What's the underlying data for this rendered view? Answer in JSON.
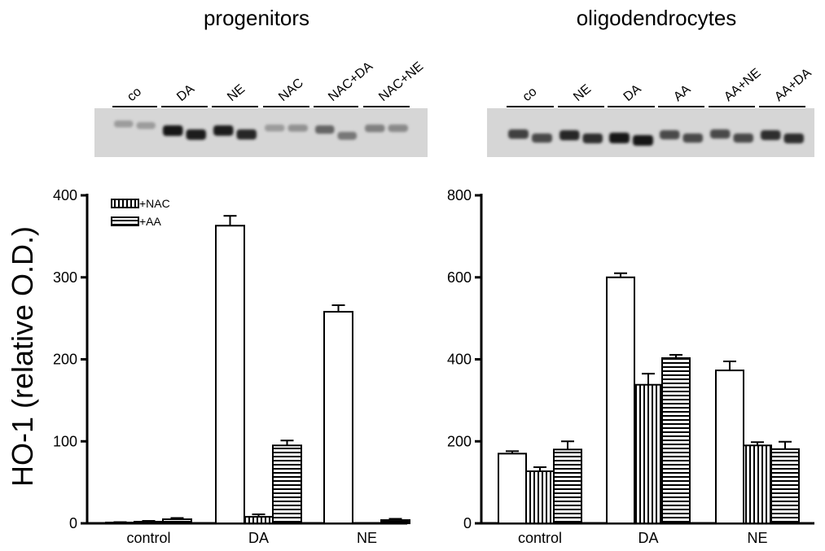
{
  "panels": [
    {
      "title": "progenitors",
      "blot_lanes": [
        "co",
        "DA",
        "NE",
        "NAC",
        "NAC+DA",
        "NAC+NE"
      ]
    },
    {
      "title": "oligodendrocytes",
      "blot_lanes": [
        "co",
        "NE",
        "DA",
        "AA",
        "AA+NE",
        "AA+DA"
      ]
    }
  ],
  "y_axis_label": "HO-1 (relative O.D.)",
  "legend": [
    "+NAC",
    "+AA"
  ],
  "colors": {
    "ink": "#000000",
    "bar_fill": "#ffffff",
    "blot_bg": "#d6d6d6",
    "band": "#1e1e1e"
  },
  "chart_data": [
    {
      "type": "bar",
      "title": "progenitors",
      "ylabel": "HO-1 (relative O.D.)",
      "categories": [
        "control",
        "DA",
        "NE"
      ],
      "ylim": [
        0,
        400
      ],
      "yticks": [
        0,
        100,
        200,
        300,
        400
      ],
      "legend_placement": "top-left",
      "series": [
        {
          "name": "",
          "pattern": "open",
          "values": [
            1,
            363,
            258
          ],
          "errors": [
            0.5,
            12,
            8
          ]
        },
        {
          "name": "+NAC",
          "pattern": "vertical-stripes",
          "values": [
            2,
            8,
            0
          ],
          "errors": [
            1,
            3,
            0
          ]
        },
        {
          "name": "+AA",
          "pattern": "horizontal-stripes",
          "values": [
            5,
            95,
            4
          ],
          "errors": [
            1.5,
            6,
            1.5
          ]
        }
      ]
    },
    {
      "type": "bar",
      "title": "oligodendrocytes",
      "categories": [
        "control",
        "DA",
        "NE"
      ],
      "ylim": [
        0,
        800
      ],
      "yticks": [
        0,
        200,
        400,
        600,
        800
      ],
      "series": [
        {
          "name": "",
          "pattern": "open",
          "values": [
            170,
            600,
            373
          ],
          "errors": [
            6,
            10,
            22
          ]
        },
        {
          "name": "",
          "pattern": "vertical-stripes",
          "values": [
            127,
            338,
            190
          ],
          "errors": [
            10,
            27,
            8
          ]
        },
        {
          "name": "",
          "pattern": "horizontal-stripes",
          "values": [
            180,
            403,
            181
          ],
          "errors": [
            20,
            8,
            18
          ]
        }
      ]
    }
  ]
}
